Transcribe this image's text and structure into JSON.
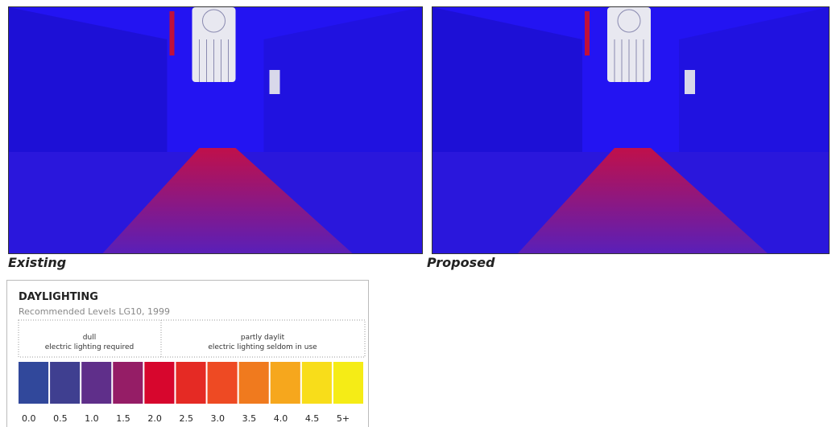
{
  "figure": {
    "captions": [
      "Existing",
      "Proposed"
    ],
    "legend": {
      "title": "DAYLIGHTING",
      "subtitle": "Recommended Levels LG10, 1999",
      "groups": [
        {
          "label": "dull",
          "note": "electric lighting required"
        },
        {
          "label": "partly daylit",
          "note": "electric lighting seldom in use"
        }
      ],
      "scale": {
        "labels": [
          "0.0",
          "0.5",
          "1.0",
          "1.5",
          "2.0",
          "2.5",
          "3.0",
          "3.5",
          "4.0",
          "4.5",
          "5+"
        ],
        "colors": [
          "#31489b",
          "#3f3f90",
          "#5f2f8a",
          "#951d66",
          "#d7062d",
          "#e52a24",
          "#ee4a23",
          "#f07a1e",
          "#f6a71d",
          "#f8dd1a",
          "#f5ec16"
        ]
      }
    }
  }
}
